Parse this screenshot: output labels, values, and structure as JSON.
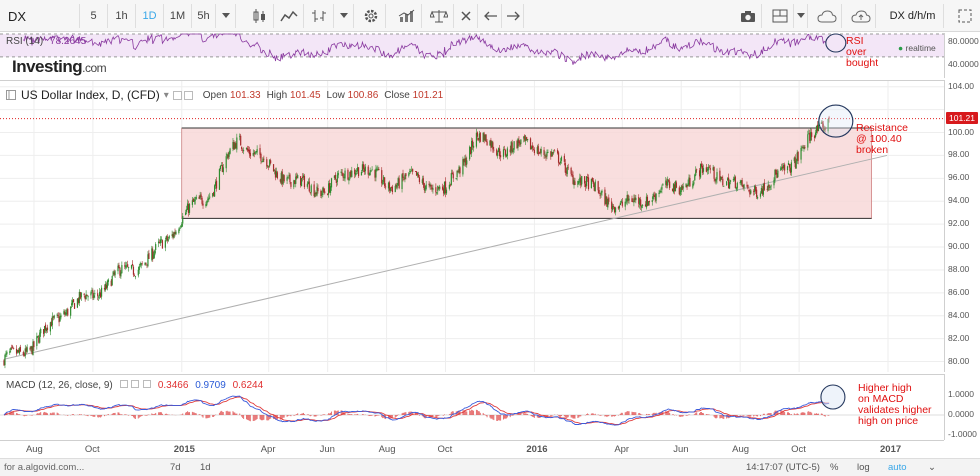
{
  "toolbar": {
    "symbol": "DX",
    "intervals": [
      {
        "label": "5",
        "active": false
      },
      {
        "label": "1h",
        "active": false
      },
      {
        "label": "1D",
        "active": true
      },
      {
        "label": "1M",
        "active": false
      },
      {
        "label": "5h",
        "active": false
      }
    ],
    "right_label": "DX d/h/m",
    "icons": [
      "dropdown-icon",
      "candles-icon",
      "area-chart-icon",
      "bars-icon",
      "dropdown-icon",
      "settings-icon",
      "indicators-icon",
      "compare-scale-icon",
      "close-icon",
      "undo-icon",
      "redo-icon",
      "camera-icon",
      "layout-icon",
      "cloud-icon",
      "cloud-upload-icon",
      "fullscreen-icon"
    ]
  },
  "rsi": {
    "label": "RSI (14)",
    "value": "78.2645",
    "realtime_label": "realtime",
    "axis_labels": [
      "80.0000",
      "40.0000"
    ],
    "logo_text": "Investing",
    "logo_suffix": ".com",
    "annotation": [
      "RSI",
      "over",
      "bought"
    ],
    "color": "#8a3aa0"
  },
  "main": {
    "title": "US Dollar Index, D, (CFD)",
    "ohlc": [
      {
        "key": "Open",
        "value": "101.33"
      },
      {
        "key": "High",
        "value": "101.45"
      },
      {
        "key": "Low",
        "value": "100.86"
      },
      {
        "key": "Close",
        "value": "101.21"
      }
    ],
    "last_price_tag": "101.21",
    "annotation": [
      "Resistance",
      "@ 100.40",
      "broken"
    ],
    "axis_labels": [
      "104.00",
      "100.00",
      "98.00",
      "96.00",
      "94.00",
      "92.00",
      "90.00",
      "88.00",
      "86.00",
      "84.00",
      "82.00",
      "80.00"
    ]
  },
  "macd": {
    "label": "MACD (12, 26, close, 9)",
    "values": [
      "0.3466",
      "0.9709",
      "0.6244"
    ],
    "value_colors": [
      "#e03030",
      "#2a5bd7",
      "#e03030"
    ],
    "axis_labels": [
      "1.0000",
      "0.0000",
      "-1.0000"
    ],
    "annotation": [
      "Higher high",
      "on MACD",
      "validates higher",
      "high on price"
    ]
  },
  "time_axis": [
    "Aug",
    "Oct",
    "2015",
    "Apr",
    "Jun",
    "Aug",
    "Oct",
    "2016",
    "Apr",
    "Jun",
    "Aug",
    "Oct",
    "2017"
  ],
  "bottom_bar": {
    "url": "for a.algovid.com...",
    "ranges": [
      "7d",
      "1d"
    ],
    "clock": "14:17:07 (UTC-5)",
    "percent": "%",
    "log": "log",
    "auto": "auto"
  },
  "colors": {
    "up": "#2e8b2e",
    "down": "#a52a2a",
    "resistance_line": "#e02020",
    "range_fill": "#f7d6d6",
    "trendline": "#b0b0b0",
    "macd_line": "#3b5bdb",
    "signal_line": "#e03c3c"
  },
  "chart_data": {
    "type": "candlestick",
    "title": "US Dollar Index, D, (CFD)",
    "x_labels": [
      "Aug",
      "Oct",
      "2015",
      "Apr",
      "Jun",
      "Aug",
      "Oct",
      "2016",
      "Apr",
      "Jun",
      "Aug",
      "Oct",
      "2017"
    ],
    "ylim": [
      79,
      104.5
    ],
    "close_path": [
      [
        "2014-07-01",
        80.0
      ],
      [
        "2014-08-01",
        81.5
      ],
      [
        "2014-09-01",
        84.5
      ],
      [
        "2014-10-01",
        85.8
      ],
      [
        "2014-11-01",
        87.8
      ],
      [
        "2014-12-01",
        89.0
      ],
      [
        "2015-01-01",
        92.5
      ],
      [
        "2015-02-01",
        95.0
      ],
      [
        "2015-03-01",
        99.5
      ],
      [
        "2015-04-01",
        97.0
      ],
      [
        "2015-05-01",
        95.5
      ],
      [
        "2015-06-01",
        95.0
      ],
      [
        "2015-07-01",
        97.2
      ],
      [
        "2015-08-01",
        95.5
      ],
      [
        "2015-09-01",
        96.0
      ],
      [
        "2015-10-01",
        94.8
      ],
      [
        "2015-11-01",
        99.5
      ],
      [
        "2015-12-01",
        98.5
      ],
      [
        "2016-01-01",
        99.0
      ],
      [
        "2016-02-01",
        97.0
      ],
      [
        "2016-03-01",
        95.0
      ],
      [
        "2016-04-01",
        93.5
      ],
      [
        "2016-05-01",
        94.5
      ],
      [
        "2016-06-01",
        95.5
      ],
      [
        "2016-07-01",
        96.8
      ],
      [
        "2016-08-01",
        95.0
      ],
      [
        "2016-09-01",
        95.4
      ],
      [
        "2016-10-01",
        98.2
      ],
      [
        "2016-11-01",
        101.2
      ]
    ],
    "resistance": 100.4,
    "range_high": 100.4,
    "range_low": 92.5,
    "range_start": "2015-01-01",
    "range_end": "2016-12-15",
    "trendline": [
      [
        "2014-07-01",
        80.2
      ],
      [
        "2016-12-31",
        98.0
      ]
    ],
    "last_close": 101.21,
    "rsi": {
      "name": "RSI (14)",
      "levels": [
        80,
        40
      ],
      "last": 78.2645
    },
    "macd": {
      "name": "MACD (12, 26, close, 9)",
      "histogram": 0.3466,
      "macd": 0.9709,
      "signal": 0.6244
    }
  }
}
